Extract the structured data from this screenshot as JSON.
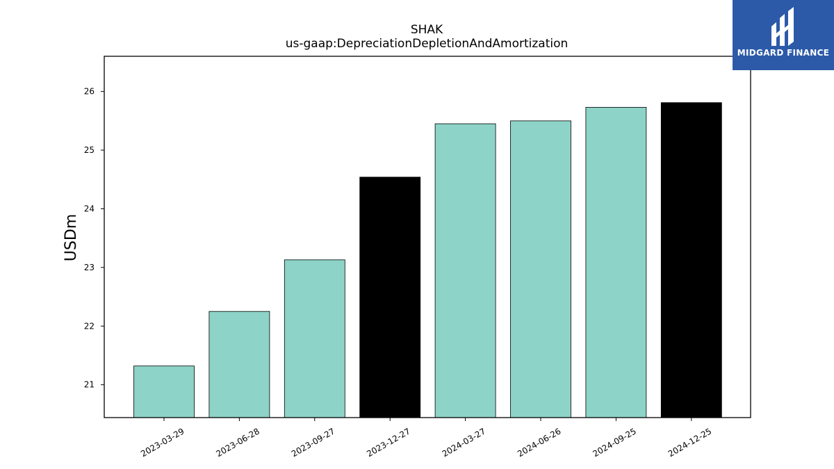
{
  "chart_data": {
    "type": "bar",
    "title": "SHAK",
    "subtitle": "us-gaap:DepreciationDepletionAndAmortization",
    "xlabel": "",
    "ylabel": "USDm",
    "categories": [
      "2023-03-29",
      "2023-06-28",
      "2023-09-27",
      "2023-12-27",
      "2024-03-27",
      "2024-06-26",
      "2024-09-25",
      "2024-12-25"
    ],
    "values": [
      21.32,
      22.25,
      23.13,
      24.54,
      25.45,
      25.5,
      25.73,
      25.81
    ],
    "bar_colors": [
      "#8dd3c7",
      "#8dd3c7",
      "#8dd3c7",
      "#000000",
      "#8dd3c7",
      "#8dd3c7",
      "#8dd3c7",
      "#000000"
    ],
    "yticks": [
      21,
      22,
      23,
      24,
      25,
      26
    ],
    "ylim": [
      20.44,
      26.6
    ],
    "grid": false,
    "legend": "none"
  },
  "logo": {
    "text": "MIDGARD FINANCE",
    "background": "#2c5aa9"
  }
}
